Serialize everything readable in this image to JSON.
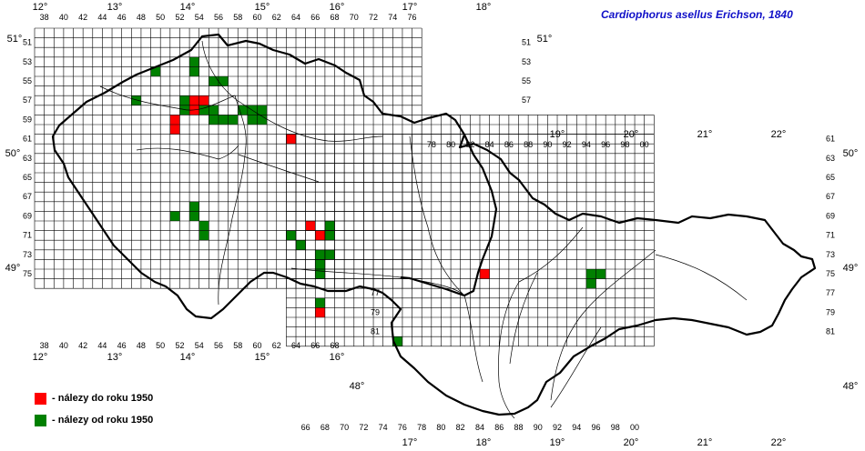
{
  "title": "Cardiophorus asellus Erichson, 1840",
  "legend": [
    {
      "label": "- nálezy do roku 1950",
      "color": "#ff0000"
    },
    {
      "label": "- nálezy od roku 1950",
      "color": "#008000"
    }
  ],
  "colors": {
    "pre1950": "#ff0000",
    "post1950": "#008000",
    "grid": "#000000",
    "border": "#000000",
    "rivers": "#000000"
  },
  "grid": {
    "cz_cols": [
      "38",
      "40",
      "42",
      "44",
      "46",
      "48",
      "50",
      "52",
      "54",
      "56",
      "58",
      "60",
      "62",
      "64",
      "66",
      "68",
      "70",
      "72",
      "74",
      "76"
    ],
    "cz_rows": [
      "51",
      "53",
      "55",
      "57",
      "59",
      "61",
      "63",
      "65",
      "67",
      "69",
      "71",
      "73",
      "75"
    ],
    "sk_cols": [
      "66",
      "68",
      "70",
      "72",
      "74",
      "76",
      "78",
      "80",
      "82",
      "84",
      "86",
      "88",
      "90",
      "92",
      "94",
      "96",
      "98",
      "00"
    ],
    "sk_rows": [
      "61",
      "63",
      "65",
      "67",
      "69",
      "71",
      "73",
      "75",
      "77",
      "79",
      "81"
    ],
    "top_cols": [
      "38",
      "40",
      "42",
      "44",
      "46",
      "48",
      "50",
      "52",
      "54",
      "56",
      "58",
      "60",
      "62",
      "64",
      "66",
      "68",
      "70",
      "72",
      "74",
      "76"
    ],
    "ne_cols": [
      "78",
      "80",
      "82",
      "84",
      "86",
      "88",
      "90",
      "92",
      "94",
      "96",
      "98",
      "00"
    ]
  },
  "longitudes_top": [
    "12°",
    "13°",
    "14°",
    "15°",
    "16°",
    "17°",
    "18°"
  ],
  "longitudes_bottom_cz": [
    "12°",
    "13°",
    "14°",
    "15°",
    "16°"
  ],
  "longitudes_bottom_sk": [
    "17°",
    "18°",
    "19°",
    "20°",
    "21°",
    "22°"
  ],
  "longitudes_sk_top": [
    "19°",
    "20°",
    "21°",
    "22°"
  ],
  "latitudes": {
    "left_51": "51°",
    "right_51": "51°",
    "left_50": "50°",
    "right_50": "50°",
    "left_49": "49°",
    "right_49": "49°",
    "left_48": "48°",
    "right_48": "48°"
  },
  "records": {
    "pre1950": [
      {
        "col": 52,
        "row": 59
      },
      {
        "col": 52,
        "row": 60
      },
      {
        "col": 54,
        "row": 57
      },
      {
        "col": 55,
        "row": 57
      },
      {
        "col": 54,
        "row": 58
      },
      {
        "col": 64,
        "row": 61
      },
      {
        "col": 66,
        "row": 70
      },
      {
        "col": 67,
        "row": 71
      },
      {
        "col": 67,
        "row": 79
      },
      {
        "col": 84,
        "row": 75
      }
    ],
    "post1950": [
      {
        "col": 54,
        "row": 53
      },
      {
        "col": 50,
        "row": 54
      },
      {
        "col": 54,
        "row": 54
      },
      {
        "col": 56,
        "row": 55
      },
      {
        "col": 57,
        "row": 55
      },
      {
        "col": 48,
        "row": 57
      },
      {
        "col": 53,
        "row": 57
      },
      {
        "col": 53,
        "row": 58
      },
      {
        "col": 55,
        "row": 58
      },
      {
        "col": 56,
        "row": 58
      },
      {
        "col": 56,
        "row": 59
      },
      {
        "col": 57,
        "row": 59
      },
      {
        "col": 58,
        "row": 59
      },
      {
        "col": 59,
        "row": 58
      },
      {
        "col": 60,
        "row": 58
      },
      {
        "col": 61,
        "row": 58
      },
      {
        "col": 60,
        "row": 59
      },
      {
        "col": 61,
        "row": 59
      },
      {
        "col": 54,
        "row": 68
      },
      {
        "col": 52,
        "row": 69
      },
      {
        "col": 54,
        "row": 69
      },
      {
        "col": 55,
        "row": 70
      },
      {
        "col": 55,
        "row": 71
      },
      {
        "col": 68,
        "row": 70
      },
      {
        "col": 68,
        "row": 71
      },
      {
        "col": 64,
        "row": 71
      },
      {
        "col": 65,
        "row": 72
      },
      {
        "col": 67,
        "row": 73
      },
      {
        "col": 68,
        "row": 73
      },
      {
        "col": 67,
        "row": 74
      },
      {
        "col": 67,
        "row": 75
      },
      {
        "col": 67,
        "row": 78
      },
      {
        "col": 95,
        "row": 75
      },
      {
        "col": 96,
        "row": 75
      },
      {
        "col": 95,
        "row": 76
      },
      {
        "col": 75,
        "row": 82
      }
    ]
  }
}
